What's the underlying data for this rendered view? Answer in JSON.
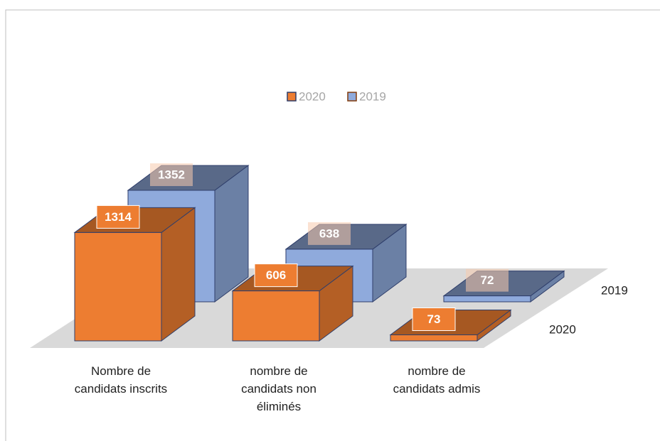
{
  "chart_data": {
    "type": "bar3d",
    "categories": [
      "Nombre de\ncandidats inscrits",
      "nombre de\ncandidats non\néliminés",
      "nombre de\ncandidats admis"
    ],
    "series": [
      {
        "name": "2020",
        "color": "#ED7D31",
        "values": [
          1314,
          606,
          73
        ]
      },
      {
        "name": "2019",
        "color": "#8FAADC",
        "values": [
          1352,
          638,
          72
        ]
      }
    ],
    "legend": "top"
  }
}
